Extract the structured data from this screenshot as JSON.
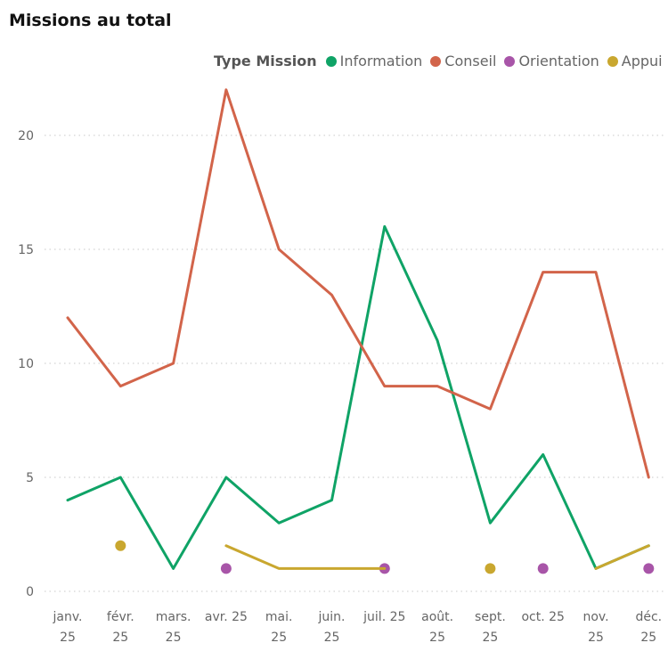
{
  "title": "Missions au total",
  "chart_data": {
    "type": "line",
    "categories": [
      [
        "janv.",
        "25"
      ],
      [
        "févr.",
        "25"
      ],
      [
        "mars.",
        "25"
      ],
      [
        "avr. 25"
      ],
      [
        "mai.",
        "25"
      ],
      [
        "juin.",
        "25"
      ],
      [
        "juil. 25"
      ],
      [
        "août.",
        "25"
      ],
      [
        "sept.",
        "25"
      ],
      [
        "oct. 25"
      ],
      [
        "nov.",
        "25"
      ],
      [
        "déc.",
        "25"
      ]
    ],
    "legend_title": "Type Mission",
    "series": [
      {
        "name": "Information",
        "color": "#0fa366",
        "values": [
          4,
          5,
          1,
          5,
          3,
          4,
          16,
          11,
          3,
          6,
          1,
          2
        ]
      },
      {
        "name": "Conseil",
        "color": "#d2644a",
        "values": [
          12,
          9,
          10,
          22,
          15,
          13,
          9,
          9,
          8,
          14,
          14,
          5
        ]
      },
      {
        "name": "Orientation",
        "color": "#a855a8",
        "values": [
          null,
          null,
          null,
          1,
          null,
          null,
          1,
          null,
          null,
          1,
          null,
          1
        ]
      },
      {
        "name": "Appui",
        "color": "#c9a72f",
        "values": [
          null,
          2,
          null,
          2,
          1,
          1,
          1,
          null,
          1,
          null,
          1,
          2
        ]
      }
    ],
    "ylim": [
      0,
      22
    ],
    "yticks": [
      0,
      5,
      10,
      15,
      20
    ],
    "grid": true,
    "legend_position": "top-right"
  }
}
